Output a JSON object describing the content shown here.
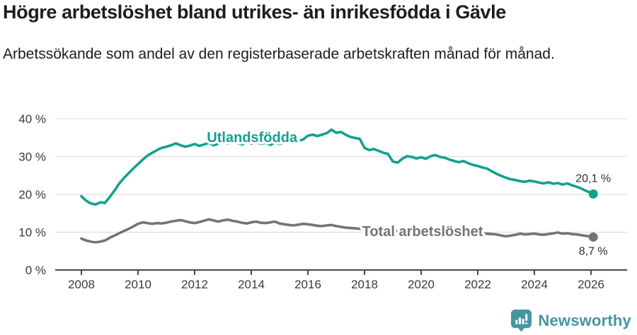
{
  "header": {
    "title": "Högre arbetslöshet bland utrikes- än inrikesfödda i Gävle",
    "subtitle": "Arbetssökande som andel av den registerbaserade arbetskraften månad för månad."
  },
  "footer": {
    "brand": "Newsworthy",
    "brand_color": "#4696a0"
  },
  "chart_data": {
    "type": "line",
    "title": "Högre arbetslöshet bland utrikes- än inrikesfödda i Gävle",
    "subtitle": "Arbetssökande som andel av den registerbaserade arbetskraften månad för månad.",
    "unit": "%",
    "grid": "horizontal",
    "x_axis": {
      "tick_years": [
        2008,
        2010,
        2012,
        2014,
        2016,
        2018,
        2020,
        2022,
        2024,
        2026
      ],
      "range": [
        2007.1,
        2027.3
      ]
    },
    "y_axis": {
      "ticks": [
        0,
        10,
        20,
        30,
        40
      ],
      "suffix": " %",
      "range": [
        0,
        42
      ]
    },
    "colors": {
      "gridline": "#d9d9d9",
      "axis": "#4a4a4a",
      "tick_text": "#3a3a3a",
      "end_label_text": "#2e2e2e"
    },
    "series": [
      {
        "name": "Utlandsfödda",
        "color": "#14a090",
        "line_label": {
          "year": 2014.03,
          "value": 35.1
        },
        "end_value_label": "20,1 %",
        "end_label_position": "above",
        "points": [
          [
            2008.0,
            19.5
          ],
          [
            2008.17,
            18.3
          ],
          [
            2008.33,
            17.6
          ],
          [
            2008.5,
            17.3
          ],
          [
            2008.67,
            17.9
          ],
          [
            2008.83,
            17.7
          ],
          [
            2009.0,
            19.3
          ],
          [
            2009.17,
            21.0
          ],
          [
            2009.33,
            22.8
          ],
          [
            2009.5,
            24.3
          ],
          [
            2009.67,
            25.6
          ],
          [
            2009.83,
            26.8
          ],
          [
            2010.0,
            28.0
          ],
          [
            2010.17,
            29.2
          ],
          [
            2010.33,
            30.2
          ],
          [
            2010.5,
            31.0
          ],
          [
            2010.67,
            31.7
          ],
          [
            2010.83,
            32.3
          ],
          [
            2011.0,
            32.6
          ],
          [
            2011.17,
            33.0
          ],
          [
            2011.33,
            33.5
          ],
          [
            2011.5,
            33.0
          ],
          [
            2011.67,
            32.6
          ],
          [
            2011.83,
            32.9
          ],
          [
            2012.0,
            33.3
          ],
          [
            2012.17,
            32.8
          ],
          [
            2012.33,
            33.2
          ],
          [
            2012.5,
            33.6
          ],
          [
            2012.67,
            33.0
          ],
          [
            2012.83,
            33.4
          ],
          [
            2013.0,
            34.0
          ],
          [
            2013.17,
            33.4
          ],
          [
            2013.33,
            34.2
          ],
          [
            2013.5,
            33.6
          ],
          [
            2013.67,
            33.2
          ],
          [
            2013.83,
            33.7
          ],
          [
            2014.0,
            33.4
          ],
          [
            2014.17,
            33.9
          ],
          [
            2014.33,
            33.3
          ],
          [
            2014.5,
            33.6
          ],
          [
            2014.67,
            33.1
          ],
          [
            2014.83,
            33.6
          ],
          [
            2015.0,
            33.3
          ],
          [
            2015.17,
            33.8
          ],
          [
            2015.33,
            33.5
          ],
          [
            2015.5,
            33.9
          ],
          [
            2015.67,
            34.1
          ],
          [
            2015.83,
            34.5
          ],
          [
            2016.0,
            35.5
          ],
          [
            2016.17,
            35.8
          ],
          [
            2016.33,
            35.4
          ],
          [
            2016.5,
            35.8
          ],
          [
            2016.67,
            36.2
          ],
          [
            2016.83,
            37.1
          ],
          [
            2017.0,
            36.3
          ],
          [
            2017.17,
            36.5
          ],
          [
            2017.33,
            35.8
          ],
          [
            2017.5,
            35.2
          ],
          [
            2017.67,
            34.9
          ],
          [
            2017.83,
            34.7
          ],
          [
            2018.0,
            32.3
          ],
          [
            2018.17,
            31.7
          ],
          [
            2018.33,
            32.0
          ],
          [
            2018.5,
            31.5
          ],
          [
            2018.67,
            31.0
          ],
          [
            2018.83,
            30.7
          ],
          [
            2019.0,
            28.7
          ],
          [
            2019.17,
            28.4
          ],
          [
            2019.33,
            29.4
          ],
          [
            2019.5,
            30.1
          ],
          [
            2019.67,
            29.9
          ],
          [
            2019.83,
            29.5
          ],
          [
            2020.0,
            29.8
          ],
          [
            2020.17,
            29.4
          ],
          [
            2020.33,
            30.1
          ],
          [
            2020.5,
            30.4
          ],
          [
            2020.67,
            29.9
          ],
          [
            2020.83,
            29.7
          ],
          [
            2021.0,
            29.2
          ],
          [
            2021.17,
            28.8
          ],
          [
            2021.33,
            28.5
          ],
          [
            2021.5,
            28.8
          ],
          [
            2021.67,
            28.2
          ],
          [
            2021.83,
            27.8
          ],
          [
            2022.0,
            27.5
          ],
          [
            2022.17,
            27.1
          ],
          [
            2022.33,
            26.8
          ],
          [
            2022.5,
            26.1
          ],
          [
            2022.67,
            25.4
          ],
          [
            2022.83,
            24.9
          ],
          [
            2023.0,
            24.4
          ],
          [
            2023.17,
            24.0
          ],
          [
            2023.33,
            23.8
          ],
          [
            2023.5,
            23.5
          ],
          [
            2023.67,
            23.3
          ],
          [
            2023.83,
            23.6
          ],
          [
            2024.0,
            23.4
          ],
          [
            2024.17,
            23.1
          ],
          [
            2024.33,
            22.9
          ],
          [
            2024.5,
            23.2
          ],
          [
            2024.67,
            22.8
          ],
          [
            2024.83,
            23.0
          ],
          [
            2025.0,
            22.6
          ],
          [
            2025.17,
            22.9
          ],
          [
            2025.33,
            22.4
          ],
          [
            2025.5,
            22.0
          ],
          [
            2025.67,
            21.5
          ],
          [
            2025.83,
            20.9
          ],
          [
            2026.0,
            20.4
          ],
          [
            2026.08,
            20.1
          ]
        ]
      },
      {
        "name": "Total arbetslöshet",
        "color": "#747474",
        "line_label": {
          "year": 2020.05,
          "value": 10.3
        },
        "end_value_label": "8,7 %",
        "end_label_position": "below",
        "points": [
          [
            2008.0,
            8.3
          ],
          [
            2008.17,
            7.8
          ],
          [
            2008.33,
            7.5
          ],
          [
            2008.5,
            7.3
          ],
          [
            2008.67,
            7.5
          ],
          [
            2008.83,
            7.8
          ],
          [
            2009.0,
            8.5
          ],
          [
            2009.17,
            9.1
          ],
          [
            2009.33,
            9.7
          ],
          [
            2009.5,
            10.3
          ],
          [
            2009.67,
            10.9
          ],
          [
            2009.83,
            11.5
          ],
          [
            2010.0,
            12.2
          ],
          [
            2010.17,
            12.6
          ],
          [
            2010.33,
            12.4
          ],
          [
            2010.5,
            12.2
          ],
          [
            2010.67,
            12.4
          ],
          [
            2010.83,
            12.3
          ],
          [
            2011.0,
            12.5
          ],
          [
            2011.17,
            12.8
          ],
          [
            2011.33,
            13.0
          ],
          [
            2011.5,
            13.2
          ],
          [
            2011.67,
            12.9
          ],
          [
            2011.83,
            12.6
          ],
          [
            2012.0,
            12.4
          ],
          [
            2012.17,
            12.7
          ],
          [
            2012.33,
            13.0
          ],
          [
            2012.5,
            13.4
          ],
          [
            2012.67,
            13.1
          ],
          [
            2012.83,
            12.8
          ],
          [
            2013.0,
            13.1
          ],
          [
            2013.17,
            13.3
          ],
          [
            2013.33,
            13.0
          ],
          [
            2013.5,
            12.8
          ],
          [
            2013.67,
            12.5
          ],
          [
            2013.83,
            12.3
          ],
          [
            2014.0,
            12.6
          ],
          [
            2014.17,
            12.8
          ],
          [
            2014.33,
            12.5
          ],
          [
            2014.5,
            12.4
          ],
          [
            2014.67,
            12.6
          ],
          [
            2014.83,
            12.8
          ],
          [
            2015.0,
            12.3
          ],
          [
            2015.17,
            12.1
          ],
          [
            2015.33,
            11.9
          ],
          [
            2015.5,
            11.8
          ],
          [
            2015.67,
            12.0
          ],
          [
            2015.83,
            12.2
          ],
          [
            2016.0,
            12.1
          ],
          [
            2016.17,
            11.9
          ],
          [
            2016.33,
            11.7
          ],
          [
            2016.5,
            11.6
          ],
          [
            2016.67,
            11.8
          ],
          [
            2016.83,
            11.9
          ],
          [
            2017.0,
            11.6
          ],
          [
            2017.17,
            11.4
          ],
          [
            2017.33,
            11.2
          ],
          [
            2017.5,
            11.1
          ],
          [
            2017.67,
            11.0
          ],
          [
            2017.83,
            10.9
          ],
          [
            2018.0,
            10.8
          ],
          [
            2018.25,
            10.6
          ],
          [
            2018.5,
            10.5
          ],
          [
            2018.75,
            10.4
          ],
          [
            2019.0,
            10.3
          ],
          [
            2019.25,
            10.4
          ],
          [
            2019.5,
            10.5
          ],
          [
            2019.75,
            10.6
          ],
          [
            2020.0,
            11.0
          ],
          [
            2020.25,
            11.2
          ],
          [
            2020.5,
            11.0
          ],
          [
            2020.75,
            10.7
          ],
          [
            2021.0,
            10.4
          ],
          [
            2021.25,
            10.1
          ],
          [
            2021.5,
            9.9
          ],
          [
            2021.75,
            9.8
          ],
          [
            2022.0,
            9.7
          ],
          [
            2022.25,
            9.6
          ],
          [
            2022.5,
            9.5
          ],
          [
            2022.67,
            9.4
          ],
          [
            2022.83,
            9.1
          ],
          [
            2023.0,
            8.9
          ],
          [
            2023.17,
            9.1
          ],
          [
            2023.33,
            9.3
          ],
          [
            2023.5,
            9.6
          ],
          [
            2023.67,
            9.4
          ],
          [
            2023.83,
            9.5
          ],
          [
            2024.0,
            9.6
          ],
          [
            2024.17,
            9.4
          ],
          [
            2024.33,
            9.3
          ],
          [
            2024.5,
            9.5
          ],
          [
            2024.67,
            9.7
          ],
          [
            2024.83,
            9.9
          ],
          [
            2025.0,
            9.6
          ],
          [
            2025.17,
            9.7
          ],
          [
            2025.33,
            9.5
          ],
          [
            2025.5,
            9.4
          ],
          [
            2025.67,
            9.2
          ],
          [
            2025.83,
            9.0
          ],
          [
            2026.0,
            8.8
          ],
          [
            2026.08,
            8.7
          ]
        ]
      }
    ]
  }
}
